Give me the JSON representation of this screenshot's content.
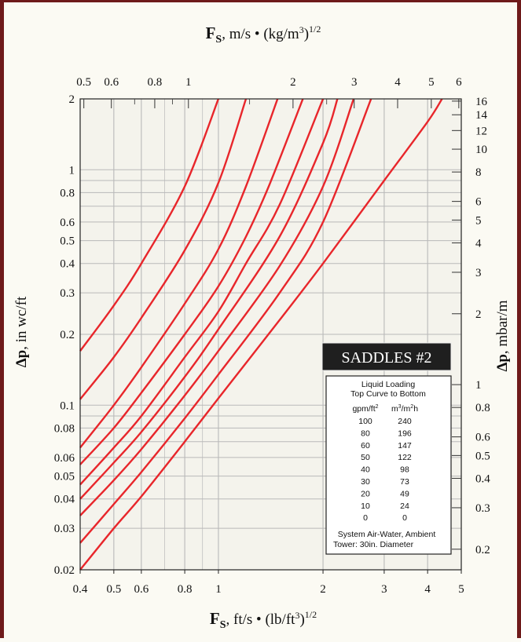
{
  "chart_data": {
    "type": "line",
    "scale": {
      "x": "log",
      "y": "log"
    },
    "grid": true,
    "top_axis_label": {
      "symbol": "F",
      "sub": "S",
      "units": ", m/s • (kg/m",
      "sup3": "3",
      "close": ")",
      "power": "1/2"
    },
    "bottom_axis_label": {
      "symbol": "F",
      "sub": "S",
      "units": ", ft/s • (lb/ft",
      "sup3": "3",
      "close": ")",
      "power": "1/2"
    },
    "left_axis_label": {
      "symbol": "Δp",
      "units": ", in wc/ft"
    },
    "right_axis_label": {
      "symbol": "Δp",
      "units": ", mbar/m"
    },
    "xlim": [
      0.4,
      5
    ],
    "ylim": [
      0.02,
      2
    ],
    "x_ticks": [
      {
        "v": 0.4,
        "label": "0.4"
      },
      {
        "v": 0.5,
        "label": "0.5"
      },
      {
        "v": 0.6,
        "label": "0.6"
      },
      {
        "v": 0.8,
        "label": "0.8"
      },
      {
        "v": 1,
        "label": "1"
      },
      {
        "v": 2,
        "label": "2"
      },
      {
        "v": 3,
        "label": "3"
      },
      {
        "v": 4,
        "label": "4"
      },
      {
        "v": 5,
        "label": "5"
      }
    ],
    "y_ticks": [
      {
        "v": 0.02,
        "label": "0.02"
      },
      {
        "v": 0.03,
        "label": "0.03"
      },
      {
        "v": 0.04,
        "label": "0.04"
      },
      {
        "v": 0.05,
        "label": "0.05"
      },
      {
        "v": 0.06,
        "label": "0.06"
      },
      {
        "v": 0.08,
        "label": "0.08"
      },
      {
        "v": 0.1,
        "label": "0.1"
      },
      {
        "v": 0.2,
        "label": "0.2"
      },
      {
        "v": 0.3,
        "label": "0.3"
      },
      {
        "v": 0.4,
        "label": "0.4"
      },
      {
        "v": 0.5,
        "label": "0.5"
      },
      {
        "v": 0.6,
        "label": "0.6"
      },
      {
        "v": 0.8,
        "label": "0.8"
      },
      {
        "v": 1,
        "label": "1"
      },
      {
        "v": 2,
        "label": "2"
      }
    ],
    "top_ticks": [
      {
        "v": 0.5,
        "label": "0.5"
      },
      {
        "v": 0.6,
        "label": "0.6"
      },
      {
        "v": 0.8,
        "label": "0.8"
      },
      {
        "v": 1,
        "label": "1"
      },
      {
        "v": 2,
        "label": "2"
      },
      {
        "v": 3,
        "label": "3"
      },
      {
        "v": 4,
        "label": "4"
      },
      {
        "v": 5,
        "label": "5"
      },
      {
        "v": 6,
        "label": "6"
      }
    ],
    "right_ticks": [
      {
        "v": 0.2,
        "label": "0.2"
      },
      {
        "v": 0.3,
        "label": "0.3"
      },
      {
        "v": 0.4,
        "label": "0.4"
      },
      {
        "v": 0.5,
        "label": "0.5"
      },
      {
        "v": 0.6,
        "label": "0.6"
      },
      {
        "v": 0.8,
        "label": "0.8"
      },
      {
        "v": 1,
        "label": "1"
      },
      {
        "v": 2,
        "label": "2"
      },
      {
        "v": 3,
        "label": "3"
      },
      {
        "v": 4,
        "label": "4"
      },
      {
        "v": 5,
        "label": "5"
      },
      {
        "v": 6,
        "label": "6"
      },
      {
        "v": 8,
        "label": "8"
      },
      {
        "v": 10,
        "label": "10"
      },
      {
        "v": 12,
        "label": "12"
      },
      {
        "v": 14,
        "label": "14"
      },
      {
        "v": 16,
        "label": "16"
      }
    ],
    "series": [
      {
        "x": [
          0.4,
          0.5,
          0.6,
          0.8,
          1.0
        ],
        "y": [
          0.17,
          0.265,
          0.4,
          0.85,
          2.0
        ]
      },
      {
        "x": [
          0.4,
          0.5,
          0.6,
          0.8,
          1.0,
          1.2
        ],
        "y": [
          0.106,
          0.16,
          0.235,
          0.455,
          0.88,
          2.0
        ]
      },
      {
        "x": [
          0.4,
          0.5,
          0.6,
          0.8,
          1.0,
          1.2,
          1.48
        ],
        "y": [
          0.066,
          0.1,
          0.145,
          0.27,
          0.46,
          0.85,
          2.0
        ]
      },
      {
        "x": [
          0.4,
          0.5,
          0.6,
          0.8,
          1.0,
          1.2,
          1.4,
          1.75
        ],
        "y": [
          0.056,
          0.08,
          0.113,
          0.2,
          0.32,
          0.52,
          0.86,
          2.0
        ]
      },
      {
        "x": [
          0.4,
          0.5,
          0.6,
          0.8,
          1.0,
          1.2,
          1.5,
          2.0
        ],
        "y": [
          0.046,
          0.066,
          0.09,
          0.16,
          0.25,
          0.4,
          0.71,
          2.0
        ]
      },
      {
        "x": [
          0.4,
          0.5,
          0.6,
          0.8,
          1.0,
          1.5,
          2.0,
          2.2
        ],
        "y": [
          0.04,
          0.057,
          0.077,
          0.132,
          0.21,
          0.52,
          1.3,
          2.0
        ]
      },
      {
        "x": [
          0.4,
          0.5,
          0.6,
          0.8,
          1.0,
          1.5,
          2.0,
          2.45
        ],
        "y": [
          0.034,
          0.048,
          0.065,
          0.11,
          0.17,
          0.39,
          0.85,
          2.0
        ]
      },
      {
        "x": [
          0.4,
          0.5,
          0.6,
          0.8,
          1.0,
          1.5,
          2.0,
          2.75
        ],
        "y": [
          0.026,
          0.038,
          0.052,
          0.088,
          0.135,
          0.3,
          0.6,
          2.0
        ]
      },
      {
        "x": [
          0.4,
          0.5,
          0.6,
          0.8,
          1.0,
          1.5,
          2.0,
          3.0,
          4.0,
          4.4
        ],
        "y": [
          0.02,
          0.03,
          0.041,
          0.07,
          0.107,
          0.23,
          0.4,
          0.9,
          1.6,
          2.0
        ]
      }
    ],
    "legend": {
      "title": "SADDLES  #2",
      "line1": "Liquid Loading",
      "line2": "Top Curve to Bottom",
      "col1_header": "gpm/ft",
      "col1_header_sup": "2",
      "col2_header": "m",
      "col2_header_sup1": "3",
      "col2_header_mid": "/m",
      "col2_header_sup2": "2",
      "col2_header_end": "h",
      "rows": [
        {
          "gpm": "100",
          "m3": "240"
        },
        {
          "gpm": "80",
          "m3": "196"
        },
        {
          "gpm": "60",
          "m3": "147"
        },
        {
          "gpm": "50",
          "m3": "122"
        },
        {
          "gpm": "40",
          "m3": "98"
        },
        {
          "gpm": "30",
          "m3": "73"
        },
        {
          "gpm": "20",
          "m3": "49"
        },
        {
          "gpm": "10",
          "m3": "24"
        },
        {
          "gpm": "0",
          "m3": "0"
        }
      ],
      "footer1": "System Air-Water, Ambient",
      "footer2": "Tower: 30in. Diameter"
    },
    "colors": {
      "curve": "#e8262b",
      "grid": "#b9b9b9",
      "legend_title_bg": "#1f1f1f"
    }
  }
}
